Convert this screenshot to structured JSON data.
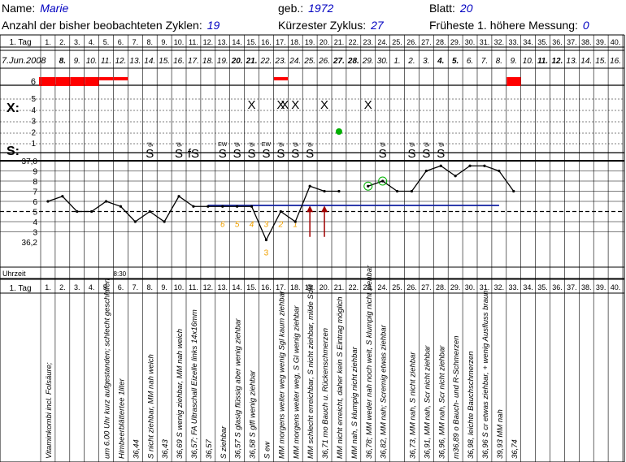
{
  "header": {
    "name_label": "Name:",
    "name_value": "Marie",
    "born_label": "geb.:",
    "born_value": "1972",
    "sheet_label": "Blatt:",
    "sheet_value": "20",
    "cycles_label": "Anzahl der bisher beobachteten Zyklen:",
    "cycles_value": "19",
    "shortest_label": "Kürzester Zyklus:",
    "shortest_value": "27",
    "earliest_label": "Früheste 1. höhere Messung:",
    "earliest_value": "0"
  },
  "grid": {
    "day_row_label": "1. Tag",
    "days": [
      "1.",
      "2.",
      "3.",
      "4.",
      "5.",
      "6.",
      "7.",
      "8.",
      "9.",
      "10.",
      "11.",
      "12.",
      "13.",
      "14.",
      "15.",
      "16.",
      "17.",
      "18.",
      "19.",
      "20.",
      "21.",
      "22.",
      "23.",
      "24.",
      "25.",
      "26.",
      "27.",
      "28.",
      "29.",
      "30.",
      "31.",
      "32.",
      "33.",
      "34.",
      "35.",
      "36.",
      "37.",
      "38.",
      "39.",
      "40."
    ],
    "dates": [
      "7.Jun.2008",
      "8.",
      "9.",
      "10.",
      "11.",
      "12.",
      "13.",
      "14.",
      "15.",
      "16.",
      "17.",
      "18.",
      "19.",
      "20.",
      "21.",
      "22.",
      "23.",
      "24.",
      "25.",
      "26.",
      "27.",
      "28.",
      "29.",
      "30.",
      "1.",
      "2.",
      "3.",
      "4.",
      "5.",
      "6.",
      "7.",
      "8.",
      "9.",
      "10.",
      "11.",
      "12.",
      "13.",
      "14.",
      "15.",
      "16."
    ],
    "dates_bold": [
      1,
      13,
      14,
      20,
      21,
      27,
      28,
      34,
      35
    ],
    "bleeding_scale_label": "6",
    "bleeding": [
      6,
      6,
      6,
      6,
      5,
      5,
      0,
      0,
      0,
      0,
      0,
      0,
      0,
      0,
      0,
      0,
      5,
      0,
      0,
      0,
      0,
      0,
      0,
      0,
      0,
      0,
      0,
      0,
      0,
      0,
      0,
      0,
      6,
      0,
      0,
      0,
      0,
      0,
      0,
      0
    ],
    "x_label": "X:",
    "x_scale": [
      "5",
      "4",
      "3",
      "2",
      "1"
    ],
    "x_marks_days": [
      15,
      17,
      17,
      18,
      20,
      23
    ],
    "s_label": "S:",
    "s_marks": [
      {
        "day": 8,
        "sym": "S",
        "note": "gl"
      },
      {
        "day": 10,
        "sym": "S",
        "note": "gl"
      },
      {
        "day": 11,
        "sym": "fS",
        "note": ""
      },
      {
        "day": 13,
        "sym": "S",
        "note": "EW"
      },
      {
        "day": 14,
        "sym": "S",
        "note": "gl"
      },
      {
        "day": 15,
        "sym": "S",
        "note": "gl"
      },
      {
        "day": 16,
        "sym": "S",
        "note": "EW"
      },
      {
        "day": 17,
        "sym": "S",
        "note": "gl"
      },
      {
        "day": 18,
        "sym": "S",
        "note": "gl"
      },
      {
        "day": 19,
        "sym": "S",
        "note": "gl"
      },
      {
        "day": 24,
        "sym": "S",
        "note": "gl"
      },
      {
        "day": 26,
        "sym": "S",
        "note": "gl"
      },
      {
        "day": 27,
        "sym": "S",
        "note": "gl"
      },
      {
        "day": 28,
        "sym": "S",
        "note": "gl"
      }
    ],
    "temp_top_label": "37,0",
    "temp_scale": [
      "9",
      "8",
      "7",
      "6",
      "5",
      "4",
      "3",
      "36,2"
    ],
    "uhrzeit_label": "Uhrzeit",
    "uhrzeit_note": "8:30",
    "coverline": 36.56,
    "green_dot_day": 21,
    "numbers": [
      {
        "day": 13,
        "n": "6"
      },
      {
        "day": 14,
        "n": "5"
      },
      {
        "day": 15,
        "n": "4"
      },
      {
        "day": 16,
        "n": "3"
      },
      {
        "day": 17,
        "n": "2"
      },
      {
        "day": 18,
        "n": "1"
      }
    ],
    "notes": [
      {
        "day": 1,
        "text": "Vitaminkombi incl. Folsäure;"
      },
      {
        "day": 5,
        "text": "um 6.00 Uhr kurz aufgestanden; schlecht geschlafen"
      },
      {
        "day": 6,
        "text": "Himbeerblättertee 1liter"
      },
      {
        "day": 7,
        "text": "36,44"
      },
      {
        "day": 8,
        "text": "S nicht ziehbar, MM nah weich"
      },
      {
        "day": 9,
        "text": "36,43"
      },
      {
        "day": 10,
        "text": "36,69 S wenig ziehbar, MM nah weich"
      },
      {
        "day": 11,
        "text": "36,57; FA Ultraschall Eizelle links 14x16mm"
      },
      {
        "day": 12,
        "text": "36,57"
      },
      {
        "day": 13,
        "text": "S ziehbar"
      },
      {
        "day": 14,
        "text": "36,57 S glasig flüssig aber wenig ziehbar"
      },
      {
        "day": 15,
        "text": "36,58 S glfl wenig ziehbar"
      },
      {
        "day": 16,
        "text": "S ew"
      },
      {
        "day": 17,
        "text": "MM morgens weiter weg wenig Sgl kaum ziehbar"
      },
      {
        "day": 18,
        "text": "MM morgens weiter weg, S Gl wenig ziehbar"
      },
      {
        "day": 19,
        "text": "MM schlecht erreichbar, S nicht ziehbar, milde SdR"
      },
      {
        "day": 20,
        "text": "36,71 mo Bauch u. Rückenschmerzen"
      },
      {
        "day": 21,
        "text": "MM nicht erreicht, daher kein S Eintrag möglich"
      },
      {
        "day": 22,
        "text": "MM nah, S klumpig nicht ziehbar"
      },
      {
        "day": 23,
        "text": "36,78; MM weder nah noch weit, S klumpig nicht ziehbar"
      },
      {
        "day": 24,
        "text": "36,82, MM nah; Scremig etwas ziehbar"
      },
      {
        "day": 26,
        "text": "36,73, MM nah, S nicht ziehbar"
      },
      {
        "day": 27,
        "text": "36,91, MM nah, Scr nicht ziehbar"
      },
      {
        "day": 28,
        "text": "36,96, MM nah, Scr nicht ziehbar"
      },
      {
        "day": 29,
        "text": "m36,89 o Bauch- und R-Schmerzen"
      },
      {
        "day": 30,
        "text": "36,98, leichte Bauchschmerzen"
      },
      {
        "day": 31,
        "text": "36,96 S cr etwas ziehbar, + wenig Ausfluss braun"
      },
      {
        "day": 32,
        "text": "39,93 MM nah"
      },
      {
        "day": 33,
        "text": "36,74"
      }
    ]
  },
  "chart_data": {
    "type": "line",
    "xlabel": "1. Tag",
    "x": [
      1,
      2,
      3,
      4,
      5,
      6,
      7,
      8,
      9,
      10,
      11,
      12,
      13,
      14,
      15,
      16,
      17,
      18,
      19,
      20,
      21,
      22,
      23,
      24,
      25,
      26,
      27,
      28,
      29,
      30,
      31,
      32,
      33
    ],
    "series": [
      {
        "name": "",
        "values": [
          36.6,
          36.65,
          36.5,
          36.5,
          36.6,
          36.55,
          36.4,
          36.5,
          36.4,
          36.65,
          36.55,
          36.55,
          36.55,
          36.55,
          36.55,
          36.22,
          36.5,
          36.4,
          36.75,
          36.7,
          36.7,
          null,
          36.75,
          36.8,
          36.7,
          36.7,
          36.9,
          36.95,
          36.85,
          36.95,
          36.95,
          36.9,
          36.7
        ]
      }
    ],
    "ylim": [
      36.2,
      37.0
    ],
    "colors": {
      "bleeding": "#ff0000",
      "curve": "#000000",
      "coverline": "#1020a0",
      "numbers": "#f0a000",
      "arrows": "#a00000",
      "dot": "#00b000",
      "accent": "#0000c0"
    }
  }
}
